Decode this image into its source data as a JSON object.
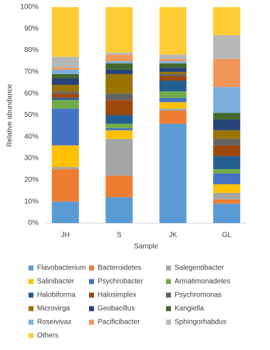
{
  "chart_data": {
    "type": "stacked-bar",
    "x_label": "Sample",
    "y_label": "Relative abundance",
    "categories": [
      "JH",
      "S",
      "JK",
      "GL"
    ],
    "ylim": [
      0,
      100
    ],
    "yticks": [
      {
        "value": 0,
        "label": "0%"
      },
      {
        "value": 10,
        "label": "10%"
      },
      {
        "value": 20,
        "label": "20%"
      },
      {
        "value": 30,
        "label": "30%"
      },
      {
        "value": 40,
        "label": "40%"
      },
      {
        "value": 50,
        "label": "50%"
      },
      {
        "value": 60,
        "label": "60%"
      },
      {
        "value": 70,
        "label": "70%"
      },
      {
        "value": 80,
        "label": "80%"
      },
      {
        "value": 90,
        "label": "90%"
      },
      {
        "value": 100,
        "label": "100%"
      }
    ],
    "legend": "bottom",
    "series": [
      {
        "name": "Flavobacterium",
        "color": "#5b9bd5",
        "values": [
          10,
          12,
          46,
          9
        ]
      },
      {
        "name": "Bacteroidetes",
        "color": "#ed7d31",
        "values": [
          15,
          10,
          6,
          2
        ]
      },
      {
        "name": "Salegentibacter",
        "color": "#a5a5a5",
        "values": [
          1,
          17,
          1,
          3
        ]
      },
      {
        "name": "Salinibacter",
        "color": "#ffc000",
        "values": [
          10,
          4,
          3,
          4
        ]
      },
      {
        "name": "Psychrobacter",
        "color": "#4472c4",
        "values": [
          17,
          1,
          2,
          5
        ]
      },
      {
        "name": "Armatimonadetes",
        "color": "#70ad47",
        "values": [
          4,
          2,
          3,
          2
        ]
      },
      {
        "name": "Halobiforma",
        "color": "#255e91",
        "values": [
          1,
          4,
          5,
          6
        ]
      },
      {
        "name": "Halosimplex",
        "color": "#9e480e",
        "values": [
          2,
          7,
          2,
          5
        ]
      },
      {
        "name": "Psychromonas",
        "color": "#636363",
        "values": [
          1,
          3,
          1,
          3
        ]
      },
      {
        "name": "Microvirga",
        "color": "#997300",
        "values": [
          3,
          9,
          1,
          4
        ]
      },
      {
        "name": "Geobacillus",
        "color": "#264478",
        "values": [
          3,
          2,
          2,
          5
        ]
      },
      {
        "name": "Kangiella",
        "color": "#43682b",
        "values": [
          2,
          3,
          2,
          3
        ]
      },
      {
        "name": "Roseivivax",
        "color": "#7cafdd",
        "values": [
          2,
          1,
          1,
          12
        ]
      },
      {
        "name": "Pacificibacter",
        "color": "#f1975a",
        "values": [
          1,
          3,
          1,
          13
        ]
      },
      {
        "name": "Sphingorhabdus",
        "color": "#b7b7b7",
        "values": [
          5,
          1,
          2,
          11
        ]
      },
      {
        "name": "Others",
        "color": "#ffcd33",
        "values": [
          23,
          21,
          22,
          13
        ]
      }
    ]
  }
}
